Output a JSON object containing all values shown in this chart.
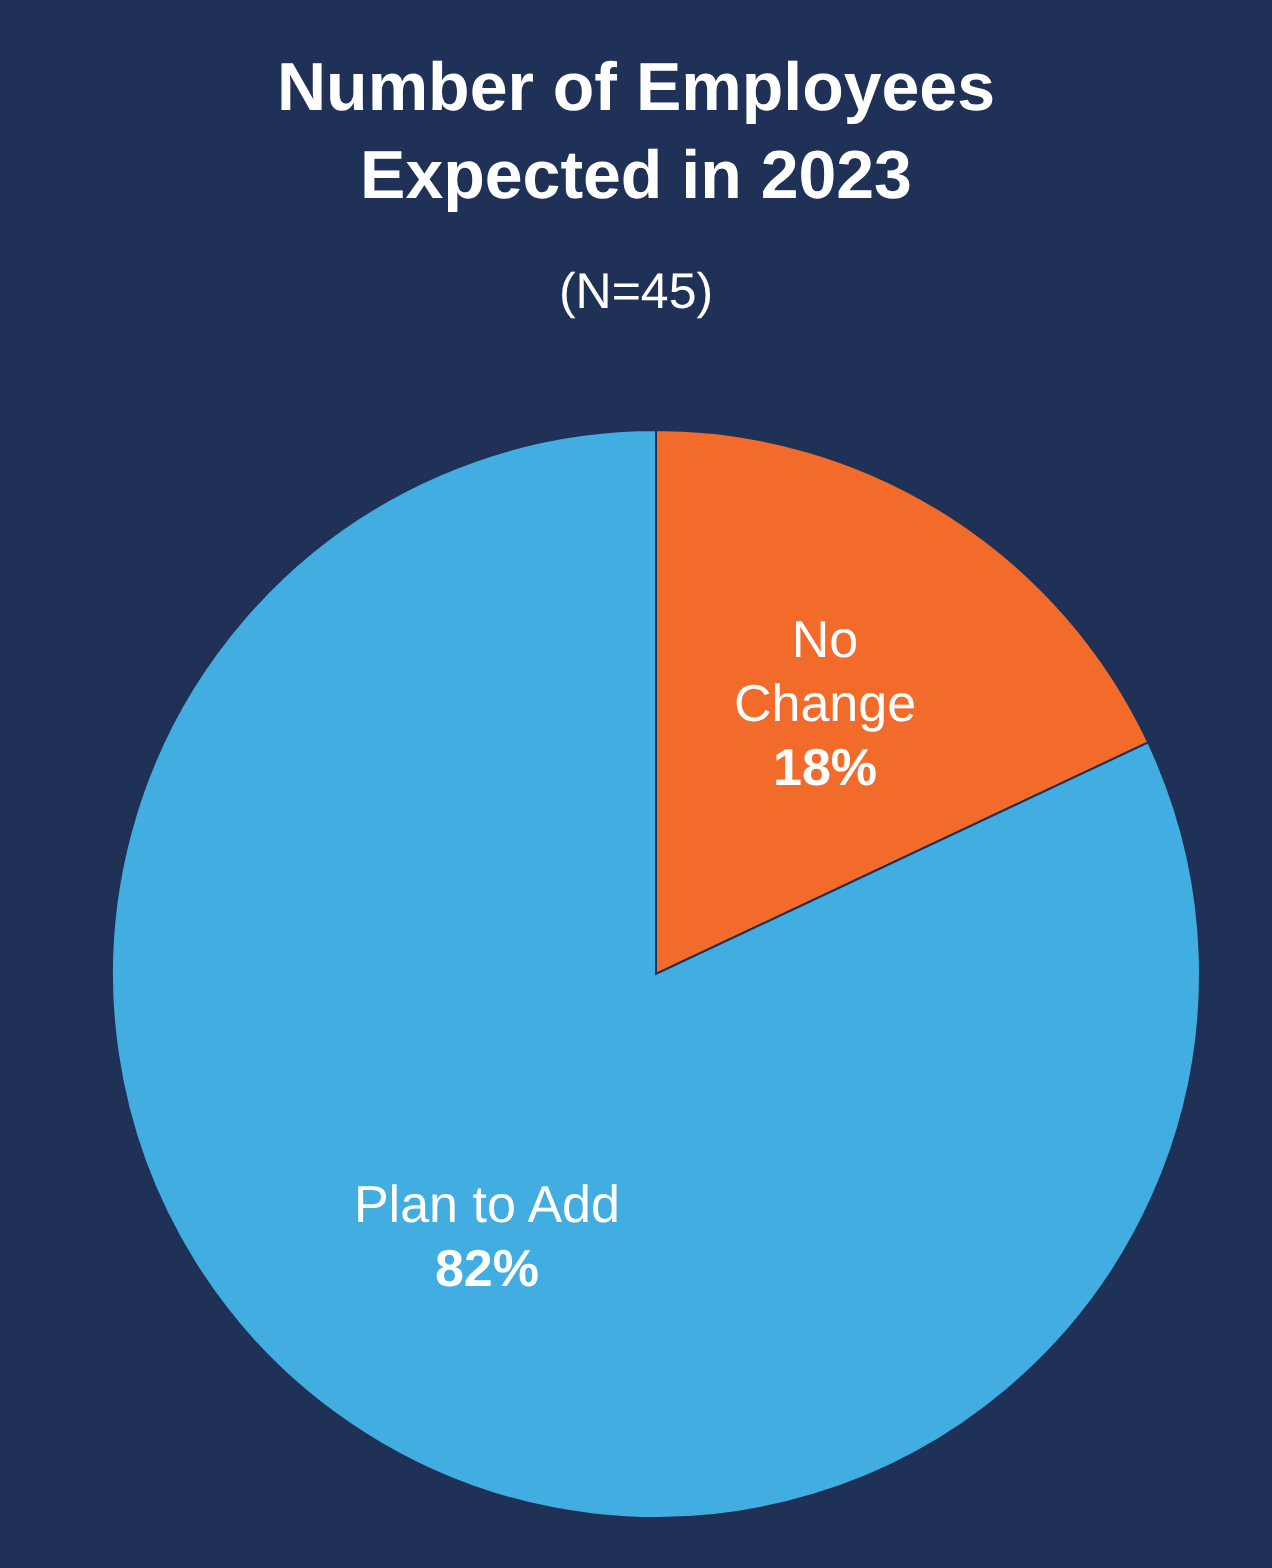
{
  "chart_data": {
    "type": "pie",
    "title": "Number of Employees Expected in 2023",
    "subtitle": "(N=45)",
    "categories": [
      "No Change",
      "Plan to Add"
    ],
    "values": [
      18,
      82
    ],
    "colors": [
      "#f26b2b",
      "#41ade0"
    ],
    "value_labels": [
      "18%",
      "82%"
    ]
  }
}
